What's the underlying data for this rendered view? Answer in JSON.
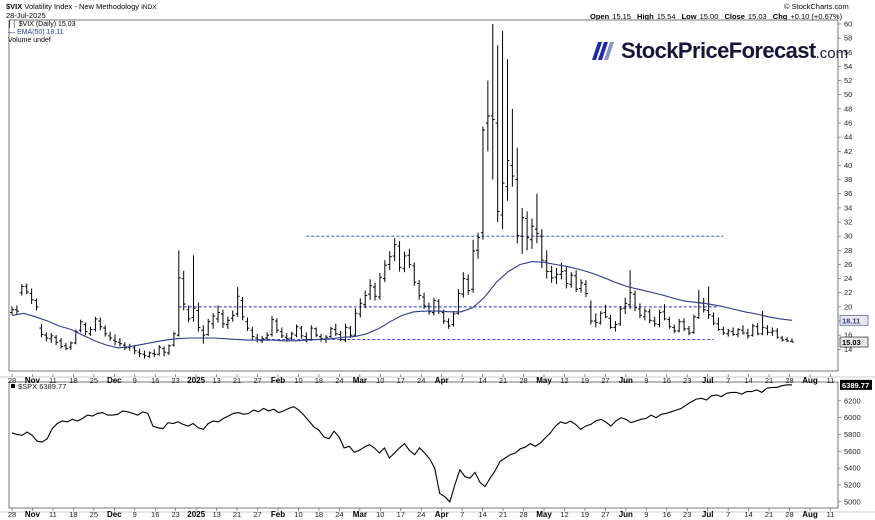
{
  "header": {
    "symbol": "$VIX",
    "name": "Volatility Index - New Methodology",
    "exchange": "INDX",
    "date": "28-Jul-2025",
    "copyright": "© StockCharts.com",
    "ohlc": {
      "open_label": "Open",
      "open": "15.15",
      "high_label": "High",
      "high": "15.54",
      "low_label": "Low",
      "low": "15.00",
      "close_label": "Close",
      "close": "15.03",
      "chg_label": "Chg",
      "chg": "+0.10 (+0.67%)"
    },
    "legend": [
      {
        "text": "$VIX (Daily) 15.03",
        "color": "#000000"
      },
      {
        "text": "EMA(50) 18.11",
        "color": "#2f3a8f"
      },
      {
        "text": "Volume undef",
        "color": "#000000"
      }
    ]
  },
  "logo": {
    "text": "StockPriceForecast",
    "suffix": ".com"
  },
  "spx_label": "$SPX 6389.77",
  "colors": {
    "price": "#000000",
    "ema": "#2f3a8f",
    "hline": "#2233cc",
    "badge_bg": "#e8e8e8"
  },
  "chart_data": [
    {
      "type": "line",
      "subtype": "ohlc-bars",
      "title": "$VIX (Daily) 15.03",
      "ylim": [
        11.5,
        60
      ],
      "yticks": [
        14,
        16,
        18,
        20,
        22,
        24,
        26,
        28,
        30,
        32,
        34,
        36,
        38,
        40,
        42,
        44,
        46,
        48,
        50,
        52,
        54,
        56,
        58,
        60
      ],
      "last_value": "15.03",
      "ema_value": "18.11",
      "ohlc": [
        [
          19.2,
          20.1,
          18.9,
          19.6
        ],
        [
          19.6,
          20.2,
          19.0,
          19.4
        ],
        [
          22.0,
          23.2,
          21.6,
          22.9
        ],
        [
          22.9,
          23.3,
          21.8,
          22.1
        ],
        [
          21.9,
          22.6,
          20.4,
          21.0
        ],
        [
          20.9,
          21.2,
          19.5,
          20.0
        ],
        [
          17.0,
          17.6,
          15.7,
          16.1
        ],
        [
          16.0,
          16.4,
          15.1,
          15.6
        ],
        [
          15.5,
          16.3,
          14.9,
          15.9
        ],
        [
          15.7,
          16.0,
          14.6,
          15.0
        ],
        [
          15.2,
          15.6,
          14.1,
          14.4
        ],
        [
          14.5,
          14.9,
          13.9,
          14.1
        ],
        [
          14.3,
          15.1,
          13.9,
          14.9
        ],
        [
          14.9,
          16.8,
          14.7,
          16.5
        ],
        [
          16.7,
          18.2,
          16.4,
          17.9
        ],
        [
          17.5,
          17.8,
          16.0,
          16.5
        ],
        [
          16.2,
          17.2,
          15.9,
          16.8
        ],
        [
          16.8,
          18.6,
          16.5,
          18.3
        ],
        [
          18.0,
          18.5,
          16.7,
          17.2
        ],
        [
          17.0,
          17.4,
          15.8,
          16.2
        ],
        [
          15.9,
          16.5,
          15.2,
          15.6
        ],
        [
          15.3,
          16.1,
          14.6,
          15.1
        ],
        [
          15.0,
          15.6,
          14.4,
          14.8
        ],
        [
          14.6,
          15.0,
          13.9,
          14.2
        ],
        [
          14.3,
          14.8,
          13.8,
          14.4
        ],
        [
          14.2,
          14.6,
          13.3,
          13.8
        ],
        [
          13.6,
          14.1,
          12.9,
          13.4
        ],
        [
          13.3,
          13.8,
          12.7,
          13.1
        ],
        [
          13.0,
          13.7,
          12.8,
          13.5
        ],
        [
          13.4,
          14.0,
          12.9,
          13.3
        ],
        [
          13.3,
          14.6,
          13.1,
          14.3
        ],
        [
          14.1,
          14.4,
          13.0,
          13.6
        ],
        [
          13.5,
          14.7,
          13.2,
          14.5
        ],
        [
          14.6,
          16.5,
          14.4,
          16.2
        ],
        [
          16.0,
          28.0,
          15.8,
          24.1
        ],
        [
          24.0,
          25.1,
          19.5,
          20.4
        ],
        [
          19.6,
          20.2,
          17.8,
          18.3
        ],
        [
          18.5,
          27.3,
          17.9,
          19.8
        ],
        [
          19.5,
          20.6,
          16.5,
          17.1
        ],
        [
          16.7,
          17.4,
          14.8,
          16.0
        ],
        [
          16.1,
          18.3,
          15.9,
          17.9
        ],
        [
          17.6,
          19.1,
          16.9,
          18.7
        ],
        [
          18.3,
          20.2,
          17.8,
          19.2
        ],
        [
          19.0,
          19.6,
          17.0,
          17.6
        ],
        [
          17.5,
          18.6,
          16.9,
          18.1
        ],
        [
          18.4,
          19.5,
          17.9,
          18.8
        ],
        [
          19.0,
          22.8,
          18.6,
          21.5
        ],
        [
          20.9,
          21.4,
          18.1,
          18.6
        ],
        [
          17.9,
          18.5,
          16.6,
          17.0
        ],
        [
          16.7,
          17.2,
          15.4,
          15.8
        ],
        [
          15.6,
          16.2,
          15.0,
          15.3
        ],
        [
          15.2,
          15.9,
          14.9,
          15.5
        ],
        [
          15.6,
          16.4,
          15.2,
          16.0
        ],
        [
          16.1,
          18.7,
          15.8,
          18.2
        ],
        [
          18.0,
          18.4,
          16.3,
          16.7
        ],
        [
          16.5,
          17.1,
          15.6,
          15.9
        ],
        [
          15.7,
          16.3,
          15.1,
          15.5
        ],
        [
          15.6,
          16.5,
          15.3,
          16.2
        ],
        [
          16.0,
          17.5,
          15.7,
          17.2
        ],
        [
          17.0,
          17.3,
          15.5,
          15.9
        ],
        [
          15.8,
          16.4,
          15.0,
          15.4
        ],
        [
          15.4,
          17.4,
          15.2,
          17.0
        ],
        [
          16.9,
          17.1,
          15.7,
          16.0
        ],
        [
          15.8,
          16.2,
          15.1,
          15.5
        ],
        [
          15.4,
          16.0,
          14.9,
          15.7
        ],
        [
          15.8,
          17.2,
          15.6,
          16.9
        ],
        [
          16.8,
          17.6,
          15.9,
          16.2
        ],
        [
          16.1,
          16.6,
          15.2,
          15.4
        ],
        [
          15.3,
          17.6,
          15.0,
          17.1
        ],
        [
          17.0,
          17.3,
          15.6,
          16.0
        ],
        [
          16.0,
          19.8,
          15.9,
          19.1
        ],
        [
          19.0,
          21.2,
          18.5,
          20.5
        ],
        [
          20.3,
          22.3,
          19.8,
          21.6
        ],
        [
          21.8,
          23.9,
          21.0,
          23.0
        ],
        [
          22.8,
          23.4,
          20.9,
          21.5
        ],
        [
          21.4,
          24.8,
          21.0,
          24.2
        ],
        [
          24.0,
          26.6,
          23.5,
          25.9
        ],
        [
          26.0,
          27.9,
          25.2,
          27.1
        ],
        [
          27.2,
          29.7,
          26.5,
          28.8
        ],
        [
          28.6,
          29.3,
          25.0,
          25.6
        ],
        [
          25.4,
          27.8,
          24.9,
          27.2
        ],
        [
          27.3,
          28.2,
          25.5,
          26.0
        ],
        [
          25.8,
          26.3,
          23.0,
          23.5
        ],
        [
          23.3,
          23.8,
          21.0,
          21.6
        ],
        [
          21.4,
          22.0,
          19.7,
          20.1
        ],
        [
          20.1,
          20.6,
          18.9,
          19.3
        ],
        [
          19.2,
          21.3,
          18.8,
          20.9
        ],
        [
          20.8,
          21.1,
          19.0,
          19.4
        ],
        [
          19.2,
          19.6,
          17.6,
          18.0
        ],
        [
          17.9,
          18.4,
          16.9,
          17.3
        ],
        [
          17.5,
          19.4,
          17.2,
          19.0
        ],
        [
          19.1,
          22.5,
          18.9,
          21.9
        ],
        [
          21.8,
          24.9,
          21.3,
          24.0
        ],
        [
          23.9,
          24.6,
          21.7,
          22.3
        ],
        [
          22.5,
          29.5,
          22.0,
          27.9
        ],
        [
          28.0,
          30.5,
          26.8,
          29.8
        ],
        [
          30.5,
          45.5,
          29.5,
          45.0
        ],
        [
          46.0,
          52.0,
          42.0,
          47.0
        ],
        [
          47.0,
          60.0,
          38.0,
          46.5
        ],
        [
          46.0,
          57.0,
          32.0,
          33.5
        ],
        [
          33.0,
          59.0,
          31.0,
          37.5
        ],
        [
          37.0,
          55.0,
          35.0,
          40.7
        ],
        [
          40.0,
          48.0,
          37.0,
          38.5
        ],
        [
          38.0,
          42.5,
          29.0,
          30.1
        ],
        [
          30.0,
          34.0,
          27.5,
          32.6
        ],
        [
          32.5,
          33.5,
          28.0,
          29.8
        ],
        [
          29.5,
          32.5,
          28.2,
          31.4
        ],
        [
          31.0,
          36.0,
          29.0,
          30.4
        ],
        [
          30.0,
          31.0,
          25.5,
          26.6
        ],
        [
          26.5,
          28.0,
          24.0,
          25.0
        ],
        [
          25.0,
          25.8,
          23.4,
          24.1
        ],
        [
          24.2,
          25.5,
          23.2,
          24.6
        ],
        [
          24.6,
          26.2,
          23.9,
          25.0
        ],
        [
          25.1,
          25.8,
          22.6,
          23.3
        ],
        [
          23.2,
          24.9,
          22.7,
          24.5
        ],
        [
          24.4,
          25.2,
          22.1,
          22.5
        ],
        [
          22.6,
          23.9,
          22.0,
          23.4
        ],
        [
          23.2,
          23.8,
          21.4,
          21.9
        ],
        [
          20.0,
          20.9,
          17.5,
          18.0
        ],
        [
          18.0,
          19.1,
          17.1,
          17.8
        ],
        [
          17.7,
          19.4,
          17.5,
          19.1
        ],
        [
          19.2,
          20.3,
          18.4,
          18.6
        ],
        [
          18.4,
          18.9,
          16.9,
          17.1
        ],
        [
          17.1,
          18.0,
          16.5,
          17.5
        ],
        [
          17.6,
          20.1,
          17.3,
          19.7
        ],
        [
          19.8,
          21.3,
          19.0,
          20.5
        ],
        [
          20.3,
          25.2,
          19.7,
          22.0
        ],
        [
          21.8,
          22.3,
          19.4,
          19.9
        ],
        [
          19.7,
          20.5,
          18.4,
          18.8
        ],
        [
          18.6,
          19.8,
          18.1,
          19.4
        ],
        [
          19.3,
          19.7,
          17.7,
          18.1
        ],
        [
          18.0,
          18.6,
          17.2,
          17.6
        ],
        [
          17.5,
          19.6,
          17.1,
          19.2
        ],
        [
          19.3,
          20.4,
          18.1,
          18.3
        ],
        [
          18.2,
          18.6,
          16.9,
          17.2
        ],
        [
          17.1,
          17.5,
          16.3,
          16.6
        ],
        [
          16.6,
          18.3,
          16.4,
          17.9
        ],
        [
          17.9,
          18.4,
          16.6,
          16.9
        ],
        [
          16.9,
          17.3,
          16.0,
          16.3
        ],
        [
          16.4,
          18.9,
          16.2,
          18.6
        ],
        [
          18.5,
          22.4,
          18.3,
          20.6
        ],
        [
          20.5,
          21.3,
          19.2,
          19.6
        ],
        [
          19.5,
          22.9,
          18.3,
          18.9
        ],
        [
          18.7,
          19.2,
          17.4,
          17.7
        ],
        [
          17.6,
          18.5,
          16.6,
          16.8
        ],
        [
          16.8,
          17.2,
          16.0,
          16.3
        ],
        [
          16.2,
          16.9,
          15.8,
          16.6
        ],
        [
          16.5,
          17.1,
          15.9,
          16.1
        ],
        [
          16.1,
          17.0,
          15.7,
          16.8
        ],
        [
          16.7,
          17.4,
          16.1,
          16.3
        ],
        [
          16.3,
          16.9,
          15.5,
          15.9
        ],
        [
          16.0,
          17.6,
          15.8,
          17.3
        ],
        [
          17.2,
          17.7,
          16.0,
          16.2
        ],
        [
          16.2,
          19.4,
          16.0,
          17.1
        ],
        [
          17.0,
          17.4,
          16.0,
          16.4
        ],
        [
          16.4,
          17.1,
          15.9,
          16.6
        ],
        [
          16.6,
          17.0,
          15.5,
          15.7
        ],
        [
          15.6,
          15.9,
          15.1,
          15.3
        ],
        [
          15.4,
          15.7,
          15.0,
          15.2
        ],
        [
          15.15,
          15.54,
          15.0,
          15.03
        ]
      ],
      "ema50": [
        18.8,
        19.1,
        18.6,
        18.0,
        17.3,
        16.8,
        16.0,
        15.2,
        14.6,
        14.2,
        14.4,
        14.7,
        15.0,
        15.3,
        15.5,
        15.6,
        15.6,
        15.6,
        15.5,
        15.4,
        15.3,
        15.3,
        15.3,
        15.2,
        15.2,
        15.3,
        15.4,
        15.5,
        15.7,
        15.8,
        16.2,
        16.9,
        17.9,
        18.8,
        19.3,
        19.4,
        19.4,
        19.3,
        19.3,
        19.9,
        21.4,
        23.5,
        25.0,
        26.0,
        26.4,
        26.3,
        26.0,
        25.7,
        25.3,
        24.8,
        24.2,
        23.5,
        22.9,
        22.5,
        22.1,
        21.7,
        21.2,
        20.8,
        20.6,
        20.4,
        20.1,
        19.7,
        19.3,
        19.0,
        18.6,
        18.3,
        18.11
      ],
      "hlines": [
        {
          "value": 30,
          "from_index": 60,
          "to_index": 145
        },
        {
          "value": 20,
          "from_index": 34,
          "to_index": 144
        },
        {
          "value": 15.4,
          "from_index": 50,
          "to_index": 143
        }
      ],
      "x_tick_labels": [
        "28",
        "Nov",
        "11",
        "18",
        "25",
        "Dec",
        "9",
        "16",
        "23",
        "2025",
        "13",
        "21",
        "27",
        "Feb",
        "10",
        "18",
        "24",
        "Mar",
        "10",
        "17",
        "24",
        "Apr",
        "7",
        "14",
        "21",
        "28",
        "May",
        "12",
        "19",
        "27",
        "Jun",
        "9",
        "16",
        "23",
        "Jul",
        "7",
        "14",
        "21",
        "28",
        "Aug",
        "11"
      ]
    },
    {
      "type": "line",
      "title": "$SPX 6389.77",
      "ylim": [
        4950,
        6400
      ],
      "yticks": [
        5000,
        5200,
        5400,
        5600,
        5800,
        6000,
        6200
      ],
      "last_value": "6389.77",
      "x_tick_labels": [
        "28",
        "Nov",
        "11",
        "18",
        "25",
        "Dec",
        "9",
        "16",
        "23",
        "2025",
        "13",
        "21",
        "27",
        "Feb",
        "10",
        "18",
        "24",
        "Mar",
        "10",
        "17",
        "24",
        "Apr",
        "7",
        "14",
        "21",
        "28",
        "May",
        "12",
        "19",
        "27",
        "Jun",
        "9",
        "16",
        "23",
        "Jul",
        "7",
        "14",
        "21",
        "28",
        "Aug",
        "11"
      ],
      "values": [
        5820,
        5800,
        5790,
        5830,
        5790,
        5720,
        5710,
        5750,
        5870,
        5930,
        5960,
        5950,
        5980,
        5960,
        5990,
        6030,
        6020,
        6050,
        6060,
        6030,
        6030,
        6040,
        6080,
        6070,
        6050,
        6030,
        6070,
        6050,
        5900,
        5880,
        5870,
        5940,
        5930,
        5950,
        5920,
        5900,
        5930,
        5880,
        5860,
        5930,
        5960,
        5950,
        5990,
        6020,
        6050,
        6060,
        6040,
        6050,
        6090,
        6070,
        6110,
        6080,
        6100,
        6060,
        6080,
        6110,
        6130,
        6090,
        6030,
        5960,
        5890,
        5850,
        5770,
        5750,
        5840,
        5770,
        5640,
        5660,
        5590,
        5610,
        5650,
        5680,
        5640,
        5580,
        5640,
        5520,
        5580,
        5640,
        5690,
        5610,
        5560,
        5640,
        5580,
        5510,
        5400,
        5100,
        5060,
        5000,
        5200,
        5380,
        5300,
        5280,
        5350,
        5230,
        5180,
        5280,
        5370,
        5480,
        5520,
        5560,
        5580,
        5630,
        5650,
        5690,
        5660,
        5700,
        5760,
        5820,
        5900,
        5950,
        5930,
        5960,
        5920,
        5860,
        5900,
        5920,
        5960,
        5980,
        5950,
        5900,
        5960,
        6000,
        5980,
        5940,
        5960,
        5980,
        5990,
        6030,
        6000,
        6040,
        6050,
        6070,
        6090,
        6110,
        6150,
        6190,
        6220,
        6230,
        6210,
        6260,
        6270,
        6250,
        6290,
        6300,
        6300,
        6280,
        6310,
        6310,
        6330,
        6300,
        6350,
        6360,
        6360,
        6380,
        6390,
        6389.77
      ]
    }
  ]
}
